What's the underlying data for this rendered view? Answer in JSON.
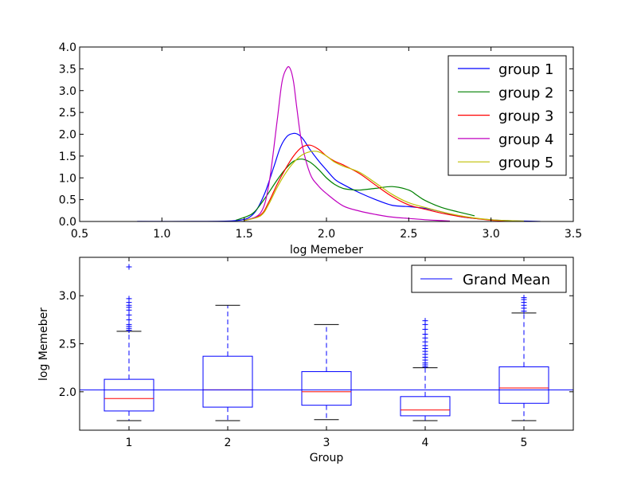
{
  "chart_data": [
    {
      "type": "line",
      "title": "",
      "xlabel": "log Memeber",
      "ylabel": "",
      "xlim": [
        0.5,
        3.5
      ],
      "ylim": [
        0.0,
        4.0
      ],
      "xticks": [
        "0.5",
        "1.0",
        "1.5",
        "2.0",
        "2.5",
        "3.0",
        "3.5"
      ],
      "yticks": [
        "0.0",
        "0.5",
        "1.0",
        "1.5",
        "2.0",
        "2.5",
        "3.0",
        "3.5",
        "4.0"
      ],
      "grid": false,
      "legend": "top-right",
      "series": [
        {
          "name": "group 1",
          "color": "#0000ff",
          "x": [
            0.85,
            1.2,
            1.45,
            1.55,
            1.62,
            1.68,
            1.72,
            1.76,
            1.8,
            1.83,
            1.86,
            1.9,
            1.95,
            2.0,
            2.05,
            2.1,
            2.2,
            2.3,
            2.4,
            2.5,
            2.6,
            2.7,
            2.8,
            2.9,
            3.0,
            3.1,
            3.2,
            3.3
          ],
          "y": [
            0.0,
            0.0,
            0.02,
            0.15,
            0.6,
            1.25,
            1.7,
            1.95,
            2.02,
            1.99,
            1.88,
            1.65,
            1.4,
            1.18,
            0.97,
            0.85,
            0.66,
            0.5,
            0.37,
            0.34,
            0.3,
            0.22,
            0.12,
            0.07,
            0.04,
            0.02,
            0.01,
            0.0
          ]
        },
        {
          "name": "group 2",
          "color": "#008000",
          "x": [
            1.45,
            1.55,
            1.62,
            1.7,
            1.75,
            1.8,
            1.85,
            1.9,
            1.95,
            2.0,
            2.05,
            2.1,
            2.15,
            2.2,
            2.3,
            2.4,
            2.5,
            2.55,
            2.6,
            2.7,
            2.8,
            2.9
          ],
          "y": [
            0.03,
            0.18,
            0.5,
            0.95,
            1.2,
            1.38,
            1.43,
            1.36,
            1.2,
            1.0,
            0.85,
            0.76,
            0.73,
            0.72,
            0.76,
            0.8,
            0.72,
            0.6,
            0.48,
            0.32,
            0.22,
            0.13
          ]
        },
        {
          "name": "group 3",
          "color": "#ff0000",
          "x": [
            1.5,
            1.6,
            1.65,
            1.7,
            1.75,
            1.8,
            1.85,
            1.9,
            1.95,
            2.0,
            2.05,
            2.1,
            2.2,
            2.3,
            2.4,
            2.5,
            2.6,
            2.7,
            2.8,
            2.9,
            3.0,
            3.1
          ],
          "y": [
            0.02,
            0.15,
            0.45,
            0.85,
            1.2,
            1.5,
            1.7,
            1.75,
            1.66,
            1.5,
            1.38,
            1.3,
            1.1,
            0.83,
            0.57,
            0.38,
            0.28,
            0.19,
            0.12,
            0.07,
            0.03,
            0.01
          ]
        },
        {
          "name": "group 4",
          "color": "#bf00bf",
          "x": [
            1.5,
            1.6,
            1.65,
            1.7,
            1.73,
            1.76,
            1.78,
            1.8,
            1.82,
            1.85,
            1.9,
            1.95,
            2.0,
            2.1,
            2.2,
            2.3,
            2.4,
            2.5,
            2.6,
            2.7,
            2.75
          ],
          "y": [
            0.02,
            0.2,
            0.85,
            2.3,
            3.2,
            3.52,
            3.5,
            3.2,
            2.6,
            1.8,
            1.1,
            0.82,
            0.64,
            0.36,
            0.24,
            0.16,
            0.1,
            0.07,
            0.04,
            0.02,
            0.01
          ]
        },
        {
          "name": "group 5",
          "color": "#bfbf00",
          "x": [
            1.5,
            1.6,
            1.65,
            1.7,
            1.75,
            1.8,
            1.85,
            1.9,
            1.95,
            2.0,
            2.05,
            2.1,
            2.2,
            2.3,
            2.4,
            2.5,
            2.6,
            2.7,
            2.8,
            2.9,
            3.0,
            3.1,
            3.2
          ],
          "y": [
            0.02,
            0.13,
            0.4,
            0.78,
            1.1,
            1.35,
            1.52,
            1.6,
            1.6,
            1.5,
            1.36,
            1.27,
            1.13,
            0.88,
            0.62,
            0.43,
            0.32,
            0.22,
            0.14,
            0.08,
            0.04,
            0.02,
            0.01
          ]
        }
      ]
    },
    {
      "type": "box",
      "title": "",
      "xlabel": "Group",
      "ylabel": "log Memeber",
      "categories": [
        "1",
        "2",
        "3",
        "4",
        "5"
      ],
      "ylim": [
        1.6,
        3.4
      ],
      "yticks": [
        "2.0",
        "2.5",
        "3.0"
      ],
      "grid": false,
      "legend": "top-right",
      "box_color": "#0000ff",
      "median_color": "#ff0000",
      "reference_line": {
        "name": "Grand Mean",
        "value": 2.02,
        "color": "#0000ff"
      },
      "boxes": [
        {
          "category": "1",
          "whisker_low": 1.7,
          "q1": 1.8,
          "median": 1.93,
          "q3": 2.13,
          "whisker_high": 2.63,
          "outliers": [
            2.64,
            2.66,
            2.68,
            2.7,
            2.75,
            2.8,
            2.85,
            2.88,
            2.9,
            2.93,
            2.97,
            3.3
          ]
        },
        {
          "category": "2",
          "whisker_low": 1.7,
          "q1": 1.84,
          "median": 2.02,
          "q3": 2.37,
          "whisker_high": 2.9,
          "outliers": []
        },
        {
          "category": "3",
          "whisker_low": 1.71,
          "q1": 1.86,
          "median": 2.0,
          "q3": 2.21,
          "whisker_high": 2.7,
          "outliers": []
        },
        {
          "category": "4",
          "whisker_low": 1.7,
          "q1": 1.75,
          "median": 1.81,
          "q3": 1.95,
          "whisker_high": 2.25,
          "outliers": [
            2.26,
            2.28,
            2.3,
            2.33,
            2.36,
            2.39,
            2.42,
            2.45,
            2.48,
            2.52,
            2.56,
            2.6,
            2.65,
            2.7,
            2.74
          ]
        },
        {
          "category": "5",
          "whisker_low": 1.7,
          "q1": 1.88,
          "median": 2.04,
          "q3": 2.26,
          "whisker_high": 2.82,
          "outliers": [
            2.84,
            2.87,
            2.9,
            2.93,
            2.96,
            2.98
          ]
        }
      ]
    }
  ]
}
